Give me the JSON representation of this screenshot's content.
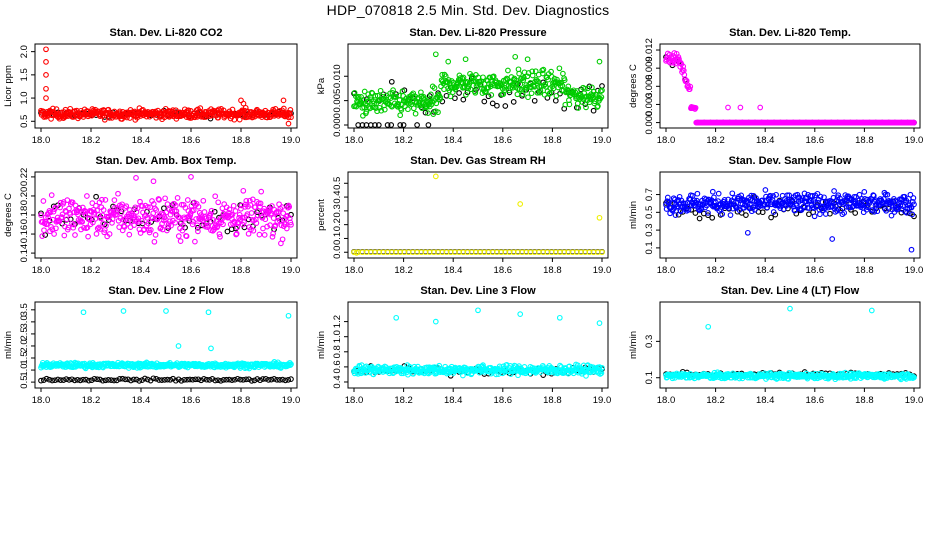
{
  "title": "HDP_070818  2.5 Min. Std. Dev. Diagnostics",
  "chart_data": [
    {
      "type": "scatter",
      "title": "Stan. Dev. Li-820 CO2",
      "ylabel": "Licor ppm",
      "xlim": [
        18.0,
        19.0
      ],
      "ylim": [
        0.42,
        2.1
      ],
      "xticks": [
        "18.0",
        "18.2",
        "18.4",
        "18.6",
        "18.8",
        "19.0"
      ],
      "xtick_values": [
        18.0,
        18.2,
        18.4,
        18.6,
        18.8,
        19.0
      ],
      "yticks": [
        "0.5",
        "1.0",
        "1.5",
        "2.0"
      ],
      "ytick_values": [
        0.5,
        1.0,
        1.5,
        2.0
      ],
      "series": [
        {
          "name": "black",
          "color": "#000000",
          "n": 60,
          "base": 0.65,
          "jitter": 0.07,
          "outliers": []
        },
        {
          "name": "red",
          "color": "#ff0000",
          "n": 420,
          "base": 0.66,
          "jitter": 0.1,
          "outliers": [
            [
              18.02,
              2.05
            ],
            [
              18.02,
              1.78
            ],
            [
              18.02,
              1.5
            ],
            [
              18.02,
              1.2
            ],
            [
              18.02,
              1.0
            ],
            [
              18.8,
              0.95
            ],
            [
              18.81,
              0.88
            ],
            [
              18.97,
              0.95
            ],
            [
              18.99,
              0.45
            ]
          ]
        }
      ]
    },
    {
      "type": "scatter",
      "title": "Stan. Dev. Li-820 Pressure",
      "ylabel": "kPa",
      "xlim": [
        18.0,
        19.0
      ],
      "ylim": [
        0,
        0.016
      ],
      "xticks": [
        "18.0",
        "18.2",
        "18.4",
        "18.6",
        "18.8",
        "19.0"
      ],
      "xtick_values": [
        18.0,
        18.2,
        18.4,
        18.6,
        18.8,
        19.0
      ],
      "yticks": [
        "0.000",
        "0.005",
        "0.010"
      ],
      "ytick_values": [
        0.0,
        0.005,
        0.01
      ],
      "series": [
        {
          "name": "black",
          "color": "#000000",
          "n": 60,
          "base": 0.006,
          "jitter": 0.003,
          "outliers": [
            [
              18.05,
              0.0
            ],
            [
              18.1,
              0.0
            ],
            [
              18.15,
              0.0
            ],
            [
              18.2,
              0.0
            ],
            [
              18.3,
              0.0
            ]
          ]
        },
        {
          "name": "green",
          "color": "#00cc00",
          "n": 420,
          "base": 0.0065,
          "jitter": 0.0025,
          "outliers": [
            [
              18.33,
              0.0145
            ],
            [
              18.38,
              0.013
            ],
            [
              18.45,
              0.0135
            ],
            [
              18.65,
              0.014
            ],
            [
              18.7,
              0.0135
            ],
            [
              18.99,
              0.013
            ]
          ]
        }
      ]
    },
    {
      "type": "scatter",
      "title": "Stan. Dev. Li-820 Temp.",
      "ylabel": "degrees C",
      "xlim": [
        18.0,
        19.0
      ],
      "ylim": [
        -0.0004,
        0.0125
      ],
      "xticks": [
        "18.0",
        "18.2",
        "18.4",
        "18.6",
        "18.8",
        "19.0"
      ],
      "xtick_values": [
        18.0,
        18.2,
        18.4,
        18.6,
        18.8,
        19.0
      ],
      "yticks": [
        "0.000",
        "0.003",
        "0.006",
        "0.009",
        "0.012"
      ],
      "ytick_values": [
        0.0,
        0.003,
        0.006,
        0.009,
        0.012
      ],
      "series": [
        {
          "name": "black",
          "color": "#000000",
          "n": 40,
          "base": 0.0,
          "jitter": 0.0,
          "outliers": []
        },
        {
          "name": "magenta",
          "color": "#ff00ff",
          "n": 420,
          "base": 0.0,
          "jitter": 0.0,
          "outliers": [
            [
              18.25,
              0.0025
            ],
            [
              18.3,
              0.0025
            ],
            [
              18.38,
              0.0025
            ]
          ]
        }
      ]
    },
    {
      "type": "scatter",
      "title": "Stan. Dev. Amb. Box Temp.",
      "ylabel": "degrees C",
      "xlim": [
        18.0,
        19.0
      ],
      "ylim": [
        0.138,
        0.222
      ],
      "xticks": [
        "18.0",
        "18.2",
        "18.4",
        "18.6",
        "18.8",
        "19.0"
      ],
      "xtick_values": [
        18.0,
        18.2,
        18.4,
        18.6,
        18.8,
        19.0
      ],
      "yticks": [
        "0.14",
        "0.16",
        "0.18",
        "0.20",
        "0.22"
      ],
      "ytick_values": [
        0.14,
        0.16,
        0.18,
        0.2,
        0.22
      ],
      "series": [
        {
          "name": "black",
          "color": "#000000",
          "n": 60,
          "base": 0.178,
          "jitter": 0.016,
          "outliers": []
        },
        {
          "name": "magenta",
          "color": "#ff00ff",
          "n": 420,
          "base": 0.178,
          "jitter": 0.02,
          "outliers": [
            [
              18.6,
              0.22
            ],
            [
              18.38,
              0.219
            ],
            [
              18.45,
              0.2155
            ]
          ]
        }
      ]
    },
    {
      "type": "scatter",
      "title": "Stan. Dev. Gas Stream RH",
      "ylabel": "percent",
      "xlim": [
        18.0,
        19.0
      ],
      "ylim": [
        -0.02,
        0.56
      ],
      "xticks": [
        "18.0",
        "18.2",
        "18.4",
        "18.6",
        "18.8",
        "19.0"
      ],
      "xtick_values": [
        18.0,
        18.2,
        18.4,
        18.6,
        18.8,
        19.0
      ],
      "yticks": [
        "0.0",
        "0.1",
        "0.2",
        "0.3",
        "0.4",
        "0.5"
      ],
      "ytick_values": [
        0.0,
        0.1,
        0.2,
        0.3,
        0.4,
        0.5
      ],
      "series": [
        {
          "name": "black",
          "color": "#000000",
          "n": 60,
          "base": 0.003,
          "jitter": 0.0,
          "outliers": []
        },
        {
          "name": "yellow",
          "color": "#f0f000",
          "n": 60,
          "base": 0.0,
          "jitter": 0.0,
          "outliers": [
            [
              18.33,
              0.55
            ],
            [
              18.67,
              0.35
            ],
            [
              18.99,
              0.25
            ],
            [
              18.01,
              -0.005
            ]
          ]
        }
      ]
    },
    {
      "type": "scatter",
      "title": "Stan. Dev. Sample Flow",
      "ylabel": "ml/min",
      "xlim": [
        18.0,
        19.0
      ],
      "ylim": [
        0.02,
        0.92
      ],
      "xticks": [
        "18.0",
        "18.2",
        "18.4",
        "18.6",
        "18.8",
        "19.0"
      ],
      "xtick_values": [
        18.0,
        18.2,
        18.4,
        18.6,
        18.8,
        19.0
      ],
      "yticks": [
        "0.1",
        "0.3",
        "0.5",
        "0.7"
      ],
      "ytick_values": [
        0.1,
        0.3,
        0.5,
        0.7
      ],
      "series": [
        {
          "name": "black",
          "color": "#000000",
          "n": 60,
          "base": 0.55,
          "jitter": 0.1,
          "outliers": []
        },
        {
          "name": "blue",
          "color": "#0000ff",
          "n": 420,
          "base": 0.6,
          "jitter": 0.11,
          "outliers": [
            [
              18.33,
              0.27
            ],
            [
              18.67,
              0.2
            ],
            [
              18.99,
              0.08
            ]
          ]
        }
      ]
    },
    {
      "type": "scatter",
      "title": "Stan. Dev. Line 2 Flow",
      "ylabel": "ml/min",
      "xlim": [
        18.0,
        19.0
      ],
      "ylim": [
        0.38,
        3.7
      ],
      "xticks": [
        "18.0",
        "18.2",
        "18.4",
        "18.6",
        "18.8",
        "19.0"
      ],
      "xtick_values": [
        18.0,
        18.2,
        18.4,
        18.6,
        18.8,
        19.0
      ],
      "yticks": [
        "0.5",
        "1.0",
        "1.5",
        "2.0",
        "2.5",
        "3.0",
        "3.5"
      ],
      "ytick_values": [
        0.5,
        1.0,
        1.5,
        2.0,
        2.5,
        3.0,
        3.5
      ],
      "series": [
        {
          "name": "black",
          "color": "#000000",
          "n": 90,
          "base": 0.6,
          "jitter": 0.05,
          "outliers": []
        },
        {
          "name": "cyan",
          "color": "#00ffff",
          "n": 420,
          "base": 1.2,
          "jitter": 0.1,
          "outliers": [
            [
              18.17,
              3.4
            ],
            [
              18.33,
              3.45
            ],
            [
              18.5,
              3.45
            ],
            [
              18.67,
              3.4
            ],
            [
              18.99,
              3.25
            ],
            [
              18.55,
              2.0
            ],
            [
              18.68,
              1.9
            ]
          ]
        }
      ]
    },
    {
      "type": "scatter",
      "title": "Stan. Dev. Line 3 Flow",
      "ylabel": "ml/min",
      "xlim": [
        18.0,
        19.0
      ],
      "ylim": [
        0.36,
        1.42
      ],
      "xticks": [
        "18.0",
        "18.2",
        "18.4",
        "18.6",
        "18.8",
        "19.0"
      ],
      "xtick_values": [
        18.0,
        18.2,
        18.4,
        18.6,
        18.8,
        19.0
      ],
      "yticks": [
        "0.4",
        "0.6",
        "0.8",
        "1.0",
        "1.2"
      ],
      "ytick_values": [
        0.4,
        0.6,
        0.8,
        1.0,
        1.2
      ],
      "series": [
        {
          "name": "black",
          "color": "#000000",
          "n": 60,
          "base": 0.55,
          "jitter": 0.05,
          "outliers": []
        },
        {
          "name": "cyan",
          "color": "#00ffff",
          "n": 420,
          "base": 0.56,
          "jitter": 0.06,
          "outliers": [
            [
              18.17,
              1.25
            ],
            [
              18.33,
              1.2
            ],
            [
              18.5,
              1.35
            ],
            [
              18.67,
              1.3
            ],
            [
              18.83,
              1.25
            ],
            [
              18.99,
              1.18
            ]
          ]
        }
      ]
    },
    {
      "type": "scatter",
      "title": "Stan. Dev. Line 4 (LT) Flow",
      "ylabel": "ml/min",
      "xlim": [
        18.0,
        19.0
      ],
      "ylim": [
        0.06,
        0.5
      ],
      "xticks": [
        "18.0",
        "18.2",
        "18.4",
        "18.6",
        "18.8",
        "19.0"
      ],
      "xtick_values": [
        18.0,
        18.2,
        18.4,
        18.6,
        18.8,
        19.0
      ],
      "yticks": [
        "0.1",
        "0.3"
      ],
      "ytick_values": [
        0.1,
        0.3
      ],
      "series": [
        {
          "name": "black",
          "color": "#000000",
          "n": 60,
          "base": 0.12,
          "jitter": 0.01,
          "outliers": []
        },
        {
          "name": "cyan",
          "color": "#00ffff",
          "n": 420,
          "base": 0.11,
          "jitter": 0.015,
          "outliers": [
            [
              18.17,
              0.38
            ],
            [
              18.5,
              0.48
            ],
            [
              18.83,
              0.47
            ]
          ]
        }
      ]
    }
  ]
}
